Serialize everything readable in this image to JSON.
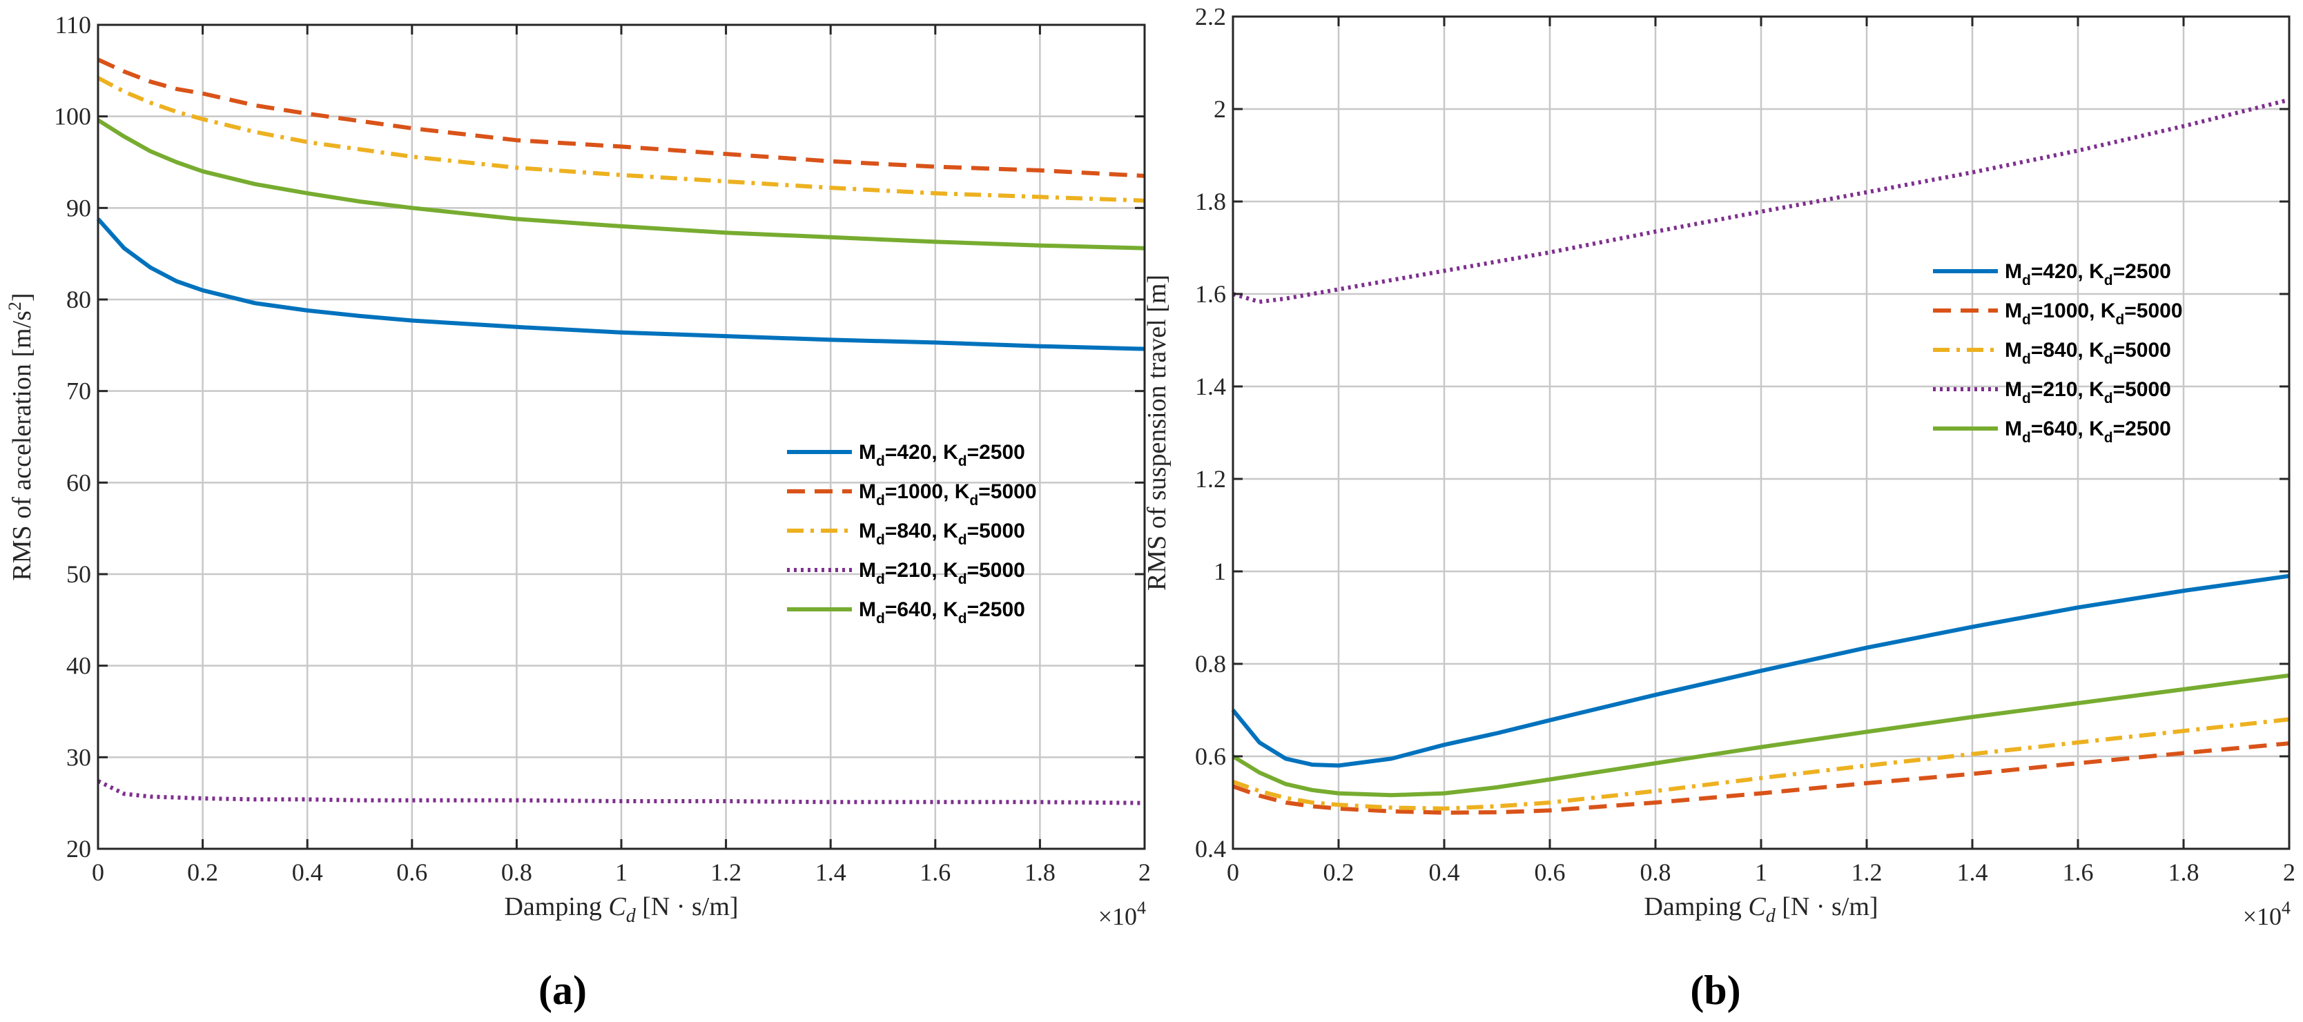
{
  "chart_data": [
    {
      "type": "line",
      "panel_label": "(a)",
      "xlabel": "Damping C_d [N·s/m]",
      "xlabel_parts": {
        "prefix": "Damping ",
        "var": "C",
        "sub": "d",
        "unit": " [N · s/m]"
      },
      "ylabel": "RMS of acceleration [m/s²]",
      "ylabel_parts": {
        "main": "RMS of acceleration [m/s",
        "sup": "2",
        "end": "]"
      },
      "x_multiplier_label": {
        "base": "×10",
        "exp": "4"
      },
      "xlim": [
        0,
        2
      ],
      "ylim": [
        20,
        110
      ],
      "xticks": [
        0,
        0.2,
        0.4,
        0.6,
        0.8,
        1,
        1.2,
        1.4,
        1.6,
        1.8,
        2
      ],
      "xtick_labels": [
        "0",
        "0.2",
        "0.4",
        "0.6",
        "0.8",
        "1",
        "1.2",
        "1.4",
        "1.6",
        "1.8",
        "2"
      ],
      "yticks": [
        20,
        30,
        40,
        50,
        60,
        70,
        80,
        90,
        100,
        110
      ],
      "ytick_labels": [
        "20",
        "30",
        "40",
        "50",
        "60",
        "70",
        "80",
        "90",
        "100",
        "110"
      ],
      "grid": true,
      "legend_position": "center-right",
      "x": [
        0,
        0.05,
        0.1,
        0.15,
        0.2,
        0.3,
        0.4,
        0.5,
        0.6,
        0.8,
        1.0,
        1.2,
        1.4,
        1.6,
        1.8,
        2.0
      ],
      "series": [
        {
          "name": "M_d=420, K_d=2500",
          "label_a": "M",
          "sub_a": "d",
          "label_b": "=420, K",
          "sub_b": "d",
          "label_c": "=2500",
          "color": "#0072BD",
          "dash": "solid",
          "values": [
            88.8,
            85.6,
            83.5,
            82.0,
            81.0,
            79.6,
            78.8,
            78.2,
            77.7,
            77.0,
            76.4,
            76.0,
            75.6,
            75.3,
            74.9,
            74.6
          ]
        },
        {
          "name": "M_d=1000, K_d=5000",
          "label_a": "M",
          "sub_a": "d",
          "label_b": "=1000, K",
          "sub_b": "d",
          "label_c": "=5000",
          "color": "#D95319",
          "dash": "dashed",
          "values": [
            106.2,
            104.9,
            103.8,
            103.0,
            102.5,
            101.2,
            100.3,
            99.5,
            98.7,
            97.4,
            96.7,
            95.9,
            95.1,
            94.5,
            94.1,
            93.5
          ]
        },
        {
          "name": "M_d=840, K_d=5000",
          "label_a": "M",
          "sub_a": "d",
          "label_b": "=840, K",
          "sub_b": "d",
          "label_c": "=5000",
          "color": "#EDB120",
          "dash": "dashdot",
          "values": [
            104.2,
            102.7,
            101.5,
            100.5,
            99.7,
            98.3,
            97.2,
            96.4,
            95.6,
            94.4,
            93.6,
            92.9,
            92.2,
            91.6,
            91.2,
            90.8
          ]
        },
        {
          "name": "M_d=210, K_d=5000",
          "label_a": "M",
          "sub_a": "d",
          "label_b": "=210, K",
          "sub_b": "d",
          "label_c": "=5000",
          "color": "#7E2F8E",
          "dash": "dotted",
          "values": [
            27.4,
            26.0,
            25.7,
            25.6,
            25.5,
            25.4,
            25.4,
            25.3,
            25.3,
            25.3,
            25.2,
            25.2,
            25.1,
            25.1,
            25.1,
            25.0
          ]
        },
        {
          "name": "M_d=640, K_d=2500",
          "label_a": "M",
          "sub_a": "d",
          "label_b": "=640, K",
          "sub_b": "d",
          "label_c": "=2500",
          "color": "#77AC30",
          "dash": "solid",
          "values": [
            99.6,
            97.8,
            96.2,
            95.0,
            94.0,
            92.6,
            91.6,
            90.7,
            90.0,
            88.8,
            88.0,
            87.3,
            86.8,
            86.3,
            85.9,
            85.6
          ]
        }
      ]
    },
    {
      "type": "line",
      "panel_label": "(b)",
      "xlabel": "Damping C_d [N·s/m]",
      "xlabel_parts": {
        "prefix": "Damping ",
        "var": "C",
        "sub": "d",
        "unit": " [N · s/m]"
      },
      "ylabel": "RMS of suspension travel [m]",
      "ylabel_parts": {
        "main": "RMS of suspension travel [m]",
        "sup": "",
        "end": ""
      },
      "x_multiplier_label": {
        "base": "×10",
        "exp": "4"
      },
      "xlim": [
        0,
        2
      ],
      "ylim": [
        0.4,
        2.2
      ],
      "xticks": [
        0,
        0.2,
        0.4,
        0.6,
        0.8,
        1,
        1.2,
        1.4,
        1.6,
        1.8,
        2
      ],
      "xtick_labels": [
        "0",
        "0.2",
        "0.4",
        "0.6",
        "0.8",
        "1",
        "1.2",
        "1.4",
        "1.6",
        "1.8",
        "2"
      ],
      "yticks": [
        0.4,
        0.6,
        0.8,
        1.0,
        1.2,
        1.4,
        1.6,
        1.8,
        2.0,
        2.2
      ],
      "ytick_labels": [
        "0.4",
        "0.6",
        "0.8",
        "1",
        "1.2",
        "1.4",
        "1.6",
        "1.8",
        "2",
        "2.2"
      ],
      "grid": true,
      "legend_position": "upper-right",
      "x": [
        0,
        0.05,
        0.1,
        0.15,
        0.2,
        0.3,
        0.4,
        0.5,
        0.6,
        0.8,
        1.0,
        1.2,
        1.4,
        1.6,
        1.8,
        2.0
      ],
      "series": [
        {
          "name": "M_d=420, K_d=2500",
          "label_a": "M",
          "sub_a": "d",
          "label_b": "=420, K",
          "sub_b": "d",
          "label_c": "=2500",
          "color": "#0072BD",
          "dash": "solid",
          "values": [
            0.7,
            0.63,
            0.595,
            0.582,
            0.58,
            0.595,
            0.625,
            0.65,
            0.678,
            0.733,
            0.785,
            0.835,
            0.88,
            0.922,
            0.958,
            0.99
          ]
        },
        {
          "name": "M_d=1000, K_d=5000",
          "label_a": "M",
          "sub_a": "d",
          "label_b": "=1000, K",
          "sub_b": "d",
          "label_c": "=5000",
          "color": "#D95319",
          "dash": "dashed",
          "values": [
            0.535,
            0.515,
            0.5,
            0.492,
            0.487,
            0.481,
            0.478,
            0.479,
            0.483,
            0.5,
            0.52,
            0.542,
            0.562,
            0.585,
            0.607,
            0.628
          ]
        },
        {
          "name": "M_d=840, K_d=5000",
          "label_a": "M",
          "sub_a": "d",
          "label_b": "=840, K",
          "sub_b": "d",
          "label_c": "=5000",
          "color": "#EDB120",
          "dash": "dashdot",
          "values": [
            0.545,
            0.525,
            0.51,
            0.5,
            0.495,
            0.489,
            0.487,
            0.492,
            0.5,
            0.525,
            0.553,
            0.58,
            0.605,
            0.63,
            0.655,
            0.68
          ]
        },
        {
          "name": "M_d=210, K_d=5000",
          "label_a": "M",
          "sub_a": "d",
          "label_b": "=210, K",
          "sub_b": "d",
          "label_c": "=5000",
          "color": "#7E2F8E",
          "dash": "dotted",
          "values": [
            1.6,
            1.583,
            1.59,
            1.6,
            1.61,
            1.63,
            1.65,
            1.67,
            1.69,
            1.735,
            1.778,
            1.82,
            1.863,
            1.91,
            1.963,
            2.02
          ]
        },
        {
          "name": "M_d=640, K_d=2500",
          "label_a": "M",
          "sub_a": "d",
          "label_b": "=640, K",
          "sub_b": "d",
          "label_c": "=2500",
          "color": "#77AC30",
          "dash": "solid",
          "values": [
            0.6,
            0.565,
            0.54,
            0.527,
            0.52,
            0.516,
            0.52,
            0.533,
            0.55,
            0.585,
            0.62,
            0.653,
            0.685,
            0.715,
            0.745,
            0.775
          ]
        }
      ]
    }
  ]
}
